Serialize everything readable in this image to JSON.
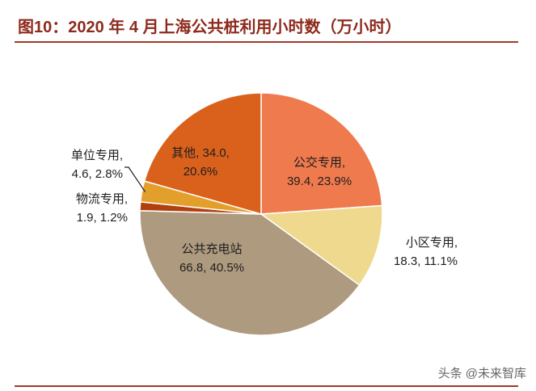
{
  "colors": {
    "title": "#8E2A1C",
    "rule": "#A23A26",
    "label_text": "#1E1E1E",
    "leader_line": "#1E1E1E",
    "watermark": "#666666",
    "slice_border": "#FFFFFF"
  },
  "watermark": "头条 @未来智库",
  "chart_data": {
    "type": "pie",
    "title": "图10：2020 年 4 月上海公共桩利用小时数（万小时）",
    "slices": [
      {
        "label_lines": [
          "公交专用,",
          "39.4, 23.9%"
        ],
        "value": 39.4,
        "percent": 23.9,
        "color": "#EF7A4D"
      },
      {
        "label_lines": [
          "小区专用,",
          "18.3, 11.1%"
        ],
        "value": 18.3,
        "percent": 11.1,
        "color": "#EFD98E"
      },
      {
        "label_lines": [
          "公共充电站",
          "66.8, 40.5%"
        ],
        "value": 66.8,
        "percent": 40.5,
        "color": "#AE9A7E"
      },
      {
        "label_lines": [
          "物流专用,",
          "1.9, 1.2%"
        ],
        "value": 1.9,
        "percent": 1.2,
        "color": "#B0400F"
      },
      {
        "label_lines": [
          "单位专用,",
          "4.6, 2.8%"
        ],
        "value": 4.6,
        "percent": 2.8,
        "color": "#E39F2C"
      },
      {
        "label_lines": [
          "其他, 34.0,",
          "20.6%"
        ],
        "value": 34.0,
        "percent": 20.6,
        "color": "#DA611C"
      }
    ]
  }
}
